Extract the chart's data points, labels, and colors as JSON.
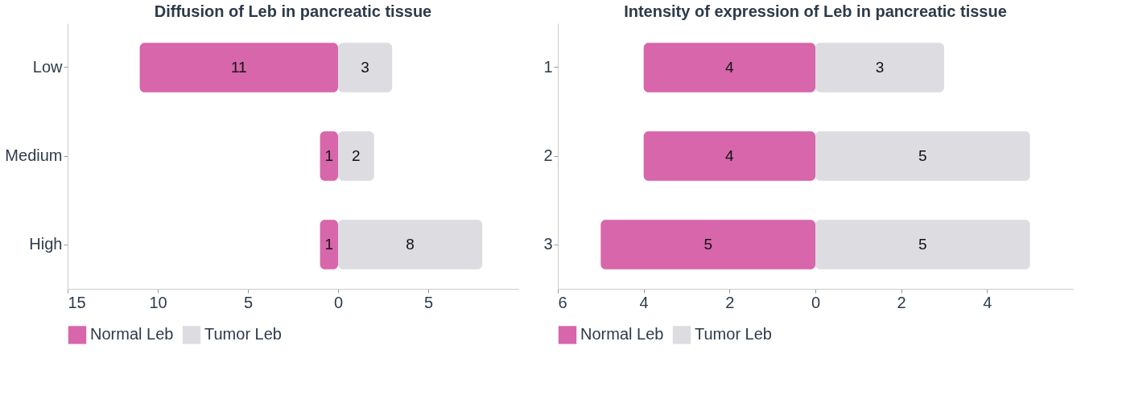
{
  "chart_data": [
    {
      "type": "bar",
      "orientation": "horizontal",
      "title": "Diffusion of Leb in pancreatic tissue",
      "categories": [
        "Low",
        "Medium",
        "High"
      ],
      "series": [
        {
          "name": "Normal Leb",
          "color": "#d766ab",
          "values": [
            11,
            1,
            1
          ],
          "base": [
            -11,
            -1,
            -1
          ],
          "value_labels": [
            "11",
            "1",
            "1"
          ]
        },
        {
          "name": "Tumor Leb",
          "color": "#dddde1",
          "values": [
            3,
            2,
            8
          ],
          "value_labels": [
            "3",
            "2",
            "8"
          ]
        }
      ],
      "xlim": [
        -15,
        10
      ],
      "xticks": [
        {
          "value": -15,
          "label": "15"
        },
        {
          "value": -10,
          "label": "10"
        },
        {
          "value": -5,
          "label": "5"
        },
        0,
        5
      ],
      "grid": false,
      "legend": "bottom"
    },
    {
      "type": "bar",
      "orientation": "horizontal",
      "title": "Intensity of expression of Leb in pancreatic tissue",
      "categories": [
        "1",
        "2",
        "3"
      ],
      "series": [
        {
          "name": "Normal Leb",
          "color": "#d766ab",
          "values": [
            4,
            4,
            5
          ],
          "base": [
            -4,
            -4,
            -5
          ],
          "value_labels": [
            "4",
            "4",
            "5"
          ]
        },
        {
          "name": "Tumor Leb",
          "color": "#dddde1",
          "values": [
            3,
            5,
            5
          ],
          "value_labels": [
            "3",
            "5",
            "5"
          ]
        }
      ],
      "xlim": [
        -6,
        6
      ],
      "xticks": [
        {
          "value": -6,
          "label": "6"
        },
        {
          "value": -4,
          "label": "4"
        },
        {
          "value": -2,
          "label": "2"
        },
        0,
        2,
        4
      ],
      "grid": false,
      "legend": "bottom"
    }
  ]
}
